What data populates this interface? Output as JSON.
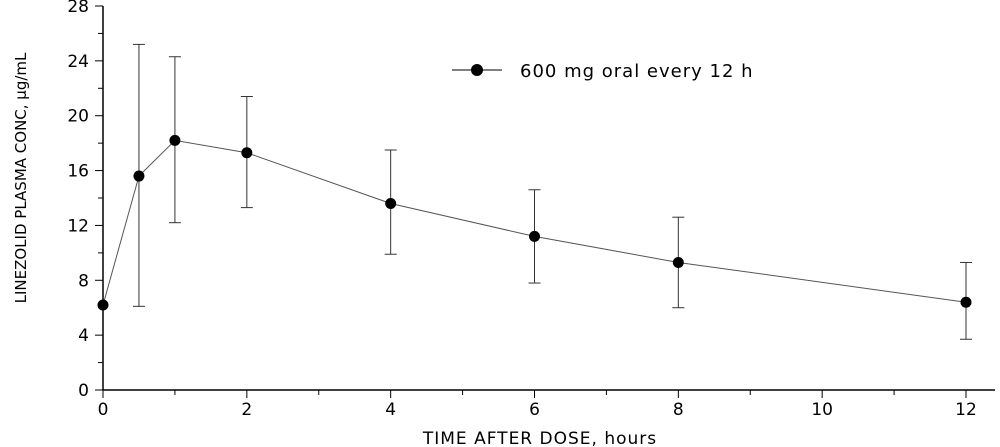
{
  "chart_data": {
    "type": "line",
    "xlabel": "TIME AFTER DOSE, hours",
    "ylabel": "LINEZOLID PLASMA CONC, μg/mL",
    "xlim": [
      0,
      12
    ],
    "ylim": [
      0,
      28
    ],
    "x_ticks": [
      "0",
      "2",
      "4",
      "6",
      "8",
      "10",
      "12"
    ],
    "y_ticks": [
      "0",
      "4",
      "8",
      "12",
      "16",
      "20",
      "24",
      "28"
    ],
    "grid": false,
    "legend_position": "top-right",
    "series": [
      {
        "name": "600 mg oral every 12 h",
        "x": [
          0,
          0.5,
          1,
          2,
          4,
          6,
          8,
          12
        ],
        "values": [
          6.2,
          15.6,
          18.2,
          17.3,
          13.6,
          11.2,
          9.3,
          6.4
        ],
        "error_low": [
          null,
          6.1,
          12.2,
          13.3,
          9.9,
          7.8,
          6.0,
          3.7
        ],
        "error_high": [
          null,
          25.2,
          24.3,
          21.4,
          17.5,
          14.6,
          12.6,
          9.3
        ]
      }
    ]
  }
}
